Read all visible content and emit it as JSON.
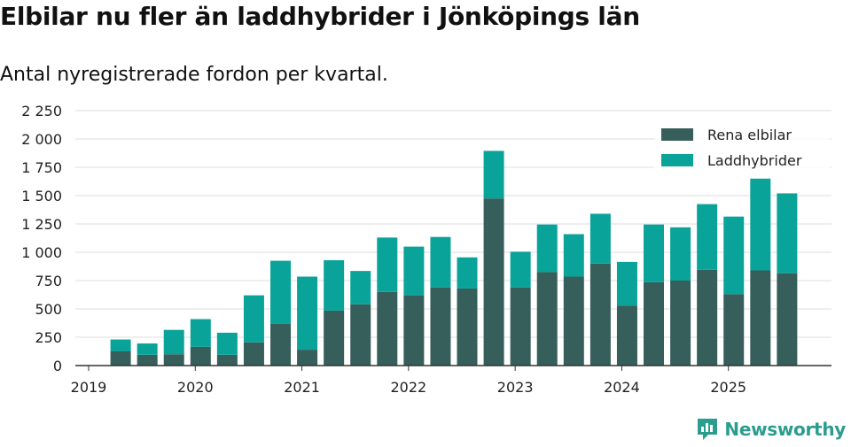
{
  "header": {
    "title": "Elbilar nu fler än laddhybrider i Jönköpings län",
    "subtitle": "Antal nyregistrerade fordon per kvartal."
  },
  "brand": {
    "name": "Newsworthy"
  },
  "colors": {
    "rena": "#365e5a",
    "ladd": "#0aa39a",
    "grid": "#dddddd",
    "axis": "#333333"
  },
  "chart_data": {
    "type": "bar",
    "stacked": true,
    "title": "Elbilar nu fler än laddhybrider i Jönköpings län",
    "subtitle": "Antal nyregistrerade fordon per kvartal.",
    "xlabel": "",
    "ylabel": "",
    "ylim": [
      0,
      2250
    ],
    "yticks": [
      0,
      250,
      500,
      750,
      1000,
      1250,
      1500,
      1750,
      2000,
      2250
    ],
    "ytick_labels": [
      "0",
      "250",
      "500",
      "750",
      "1 000",
      "1 250",
      "1 500",
      "1 750",
      "2 000",
      "2 250"
    ],
    "xlim": [
      2019.0,
      2026.0
    ],
    "xticks": [
      2019,
      2020,
      2021,
      2022,
      2023,
      2024,
      2025
    ],
    "xtick_labels": [
      "2019",
      "2020",
      "2021",
      "2022",
      "2023",
      "2024",
      "2025"
    ],
    "grid": true,
    "legend": "top-right",
    "categories": [
      "2019 Q2",
      "2019 Q3",
      "2019 Q4",
      "2020 Q1",
      "2020 Q2",
      "2020 Q3",
      "2020 Q4",
      "2021 Q1",
      "2021 Q2",
      "2021 Q3",
      "2021 Q4",
      "2022 Q1",
      "2022 Q2",
      "2022 Q3",
      "2022 Q4",
      "2023 Q1",
      "2023 Q2",
      "2023 Q3",
      "2023 Q4",
      "2024 Q1",
      "2024 Q2",
      "2024 Q3",
      "2024 Q4",
      "2025 Q1",
      "2025 Q2",
      "2025 Q3"
    ],
    "x": [
      2019.3,
      2019.55,
      2019.8,
      2020.05,
      2020.3,
      2020.55,
      2020.8,
      2021.05,
      2021.3,
      2021.55,
      2021.8,
      2022.05,
      2022.3,
      2022.55,
      2022.8,
      2023.05,
      2023.3,
      2023.55,
      2023.8,
      2024.05,
      2024.3,
      2024.55,
      2024.8,
      2025.05,
      2025.3,
      2025.55
    ],
    "series": [
      {
        "name": "Rena elbilar",
        "values": [
          125,
          95,
          100,
          165,
          95,
          205,
          370,
          140,
          485,
          540,
          650,
          620,
          690,
          680,
          1475,
          690,
          825,
          785,
          900,
          530,
          735,
          750,
          845,
          630,
          840,
          815
        ]
      },
      {
        "name": "Laddhybrider",
        "values": [
          105,
          100,
          215,
          245,
          195,
          415,
          555,
          645,
          445,
          295,
          480,
          430,
          445,
          275,
          420,
          315,
          420,
          375,
          440,
          385,
          510,
          470,
          580,
          685,
          810,
          705
        ]
      }
    ]
  }
}
